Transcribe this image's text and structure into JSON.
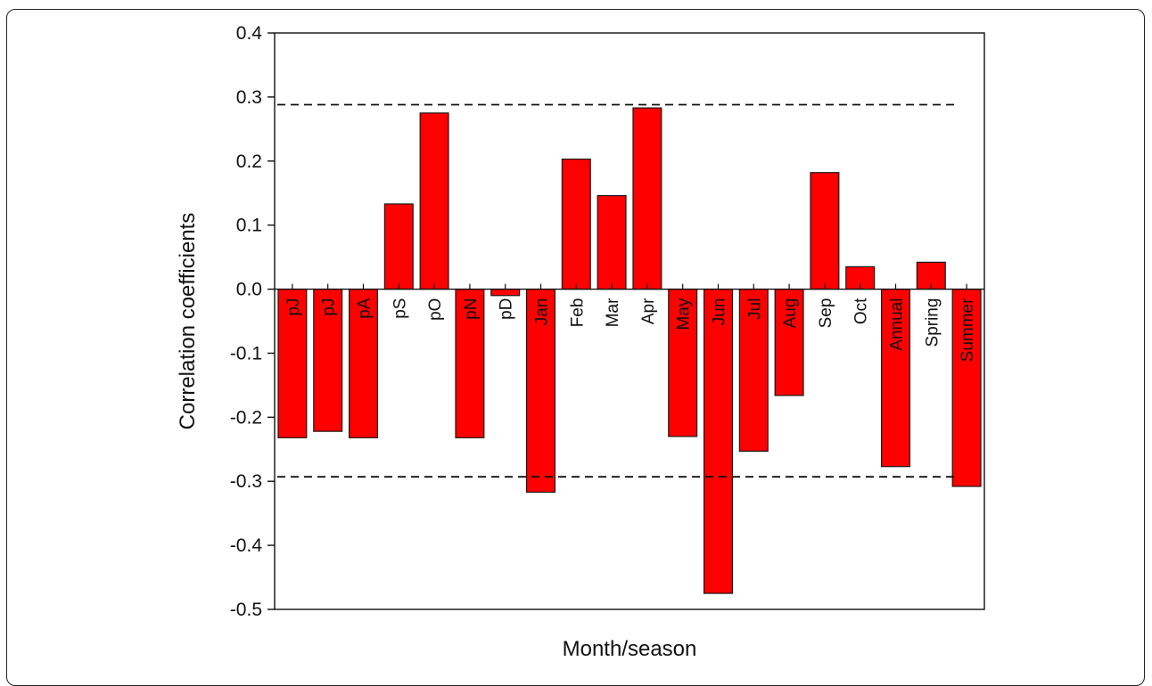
{
  "chart_data": {
    "type": "bar",
    "categories": [
      "pJ",
      "pJ",
      "pA",
      "pS",
      "pO",
      "pN",
      "pD",
      "Jan",
      "Feb",
      "Mar",
      "Apr",
      "May",
      "Jun",
      "Jul",
      "Aug",
      "Sep",
      "Oct",
      "Annual",
      "Spring",
      "Summer"
    ],
    "values": [
      -0.232,
      -0.222,
      -0.232,
      0.133,
      0.275,
      -0.232,
      -0.01,
      -0.317,
      0.203,
      0.146,
      0.283,
      -0.23,
      -0.475,
      -0.253,
      -0.166,
      0.182,
      0.035,
      -0.277,
      0.042,
      -0.308
    ],
    "title": "",
    "xlabel": "Month/season",
    "ylabel": "Correlation coefficients",
    "ylim": [
      -0.5,
      0.4
    ],
    "yticks": [
      "-0.5",
      "-0.4",
      "-0.3",
      "-0.2",
      "-0.1",
      "0.0",
      "0.1",
      "0.2",
      "0.3",
      "0.4"
    ],
    "significance_levels": [
      0.288,
      -0.293
    ],
    "grid": false,
    "colors": {
      "bar_fill": "#ff0000",
      "bar_stroke": "#1a1a1a",
      "axis": "#111111",
      "reference_line": "#111111"
    }
  }
}
